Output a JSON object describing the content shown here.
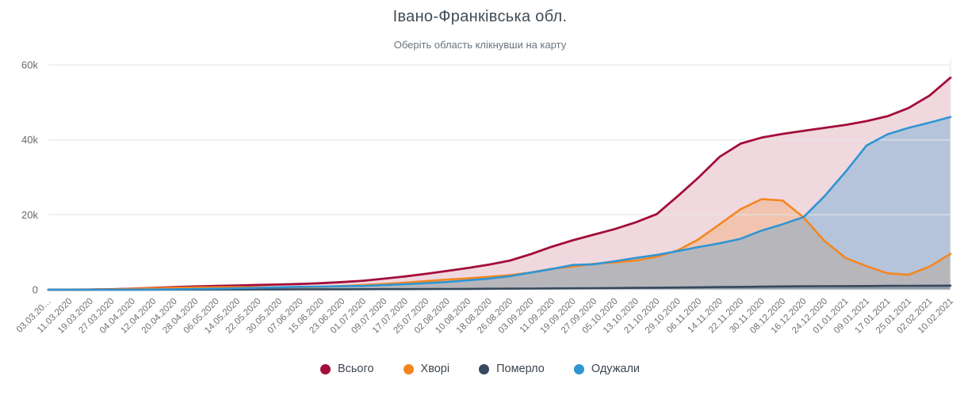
{
  "chart_data": {
    "type": "area",
    "title": "Івано-Франківська обл.",
    "subtitle": "Оберіть область клікнувши на карту",
    "xlabel": "",
    "ylabel": "",
    "ylim": [
      0,
      60000
    ],
    "grid": "horizontal",
    "legend_position": "bottom",
    "yticks": [
      {
        "label": "0",
        "value": 0
      },
      {
        "label": "20k",
        "value": 20000
      },
      {
        "label": "40k",
        "value": 40000
      },
      {
        "label": "60k",
        "value": 60000
      }
    ],
    "categories": [
      "03.03.20…",
      "11.03.2020",
      "19.03.2020",
      "27.03.2020",
      "04.04.2020",
      "12.04.2020",
      "20.04.2020",
      "28.04.2020",
      "06.05.2020",
      "14.05.2020",
      "22.05.2020",
      "30.05.2020",
      "07.06.2020",
      "15.06.2020",
      "23.06.2020",
      "01.07.2020",
      "09.07.2020",
      "17.07.2020",
      "25.07.2020",
      "02.08.2020",
      "10.08.2020",
      "18.08.2020",
      "26.08.2020",
      "03.09.2020",
      "11.09.2020",
      "19.09.2020",
      "27.09.2020",
      "05.10.2020",
      "13.10.2020",
      "21.10.2020",
      "29.10.2020",
      "06.11.2020",
      "14.11.2020",
      "22.11.2020",
      "30.11.2020",
      "08.12.2020",
      "16.12.2020",
      "24.12.2020",
      "01.01.2021",
      "09.01.2021",
      "17.01.2021",
      "25.01.2021",
      "02.02.2021",
      "10.02.2021"
    ],
    "series": [
      {
        "name": "Всього",
        "key": "total",
        "color": "#a30d3a",
        "fill_opacity": 0.16,
        "values": [
          0,
          15,
          50,
          130,
          300,
          500,
          700,
          880,
          1020,
          1150,
          1280,
          1400,
          1550,
          1750,
          2050,
          2400,
          2950,
          3550,
          4250,
          5000,
          5800,
          6700,
          7800,
          9500,
          11500,
          13200,
          14700,
          16200,
          18000,
          20200,
          25000,
          30000,
          35500,
          39000,
          40600,
          41600,
          42400,
          43200,
          44000,
          45000,
          46300,
          48500,
          51800,
          56600
        ]
      },
      {
        "name": "Хворі",
        "key": "sick",
        "color": "#f5861f",
        "fill_opacity": 0.24,
        "values": [
          0,
          15,
          45,
          115,
          260,
          420,
          550,
          640,
          680,
          700,
          680,
          640,
          660,
          780,
          990,
          1250,
          1550,
          1900,
          2300,
          2700,
          3050,
          3450,
          3900,
          4600,
          5600,
          6200,
          6900,
          7300,
          7800,
          8800,
          10500,
          13500,
          17500,
          21500,
          24200,
          23800,
          19300,
          13000,
          8500,
          6300,
          4400,
          4000,
          6200,
          9600
        ]
      },
      {
        "name": "Померло",
        "key": "dead",
        "color": "#36495e",
        "fill_opacity": 0.3,
        "values": [
          0,
          0,
          1,
          4,
          10,
          20,
          32,
          45,
          58,
          70,
          82,
          95,
          108,
          120,
          132,
          145,
          160,
          178,
          198,
          220,
          242,
          265,
          290,
          320,
          355,
          390,
          425,
          460,
          500,
          545,
          595,
          650,
          710,
          770,
          830,
          880,
          920,
          950,
          975,
          1000,
          1025,
          1050,
          1075,
          1100
        ]
      },
      {
        "name": "Одужали",
        "key": "recovered",
        "color": "#2f95d3",
        "fill_opacity": 0.3,
        "values": [
          0,
          0,
          2,
          10,
          30,
          60,
          120,
          195,
          280,
          380,
          520,
          665,
          780,
          850,
          930,
          1005,
          1240,
          1470,
          1750,
          2080,
          2510,
          2985,
          3610,
          4580,
          5545,
          6610,
          6800,
          7600,
          8500,
          9300,
          10300,
          11400,
          12400,
          13600,
          15800,
          17500,
          19400,
          25000,
          31500,
          38500,
          41500,
          43200,
          44600,
          46100
        ]
      }
    ],
    "axis_text_color": "#6b7075",
    "grid_color": "#e6e6e6"
  }
}
